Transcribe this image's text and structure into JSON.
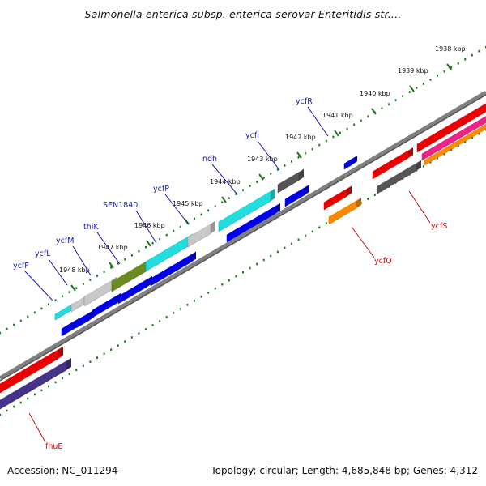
{
  "title": "Salmonella enterica subsp. enterica serovar Enteritidis str....",
  "footer": {
    "accession": "Accession: NC_011294",
    "stats": "Topology: circular; Length: 4,685,848 bp; Genes: 4,312"
  },
  "scale_ticks": [
    "1938 kbp",
    "1939 kbp",
    "1940 kbp",
    "1941 kbp",
    "1942 kbp",
    "1943 kbp",
    "1944 kbp",
    "1945 kbp",
    "1946 kbp",
    "1947 kbp",
    "1948 kbp"
  ],
  "genes_top": [
    "ycfR",
    "ycfJ",
    "ndh",
    "ycfP",
    "SEN1840",
    "thiK",
    "ycfM",
    "ycfL",
    "ycfF"
  ],
  "genes_bottom": [
    "ycfS",
    "ycfQ",
    "fhuE"
  ],
  "colors": {
    "strand_plus": "#0000ee",
    "red": "#ee0000",
    "orange": "#ff8800",
    "cyan": "#22dddd",
    "olive": "#6b8a1f",
    "gray_light": "#c8c8c8",
    "gray_dark": "#555555",
    "magenta": "#ee2288",
    "purple": "#443388"
  }
}
